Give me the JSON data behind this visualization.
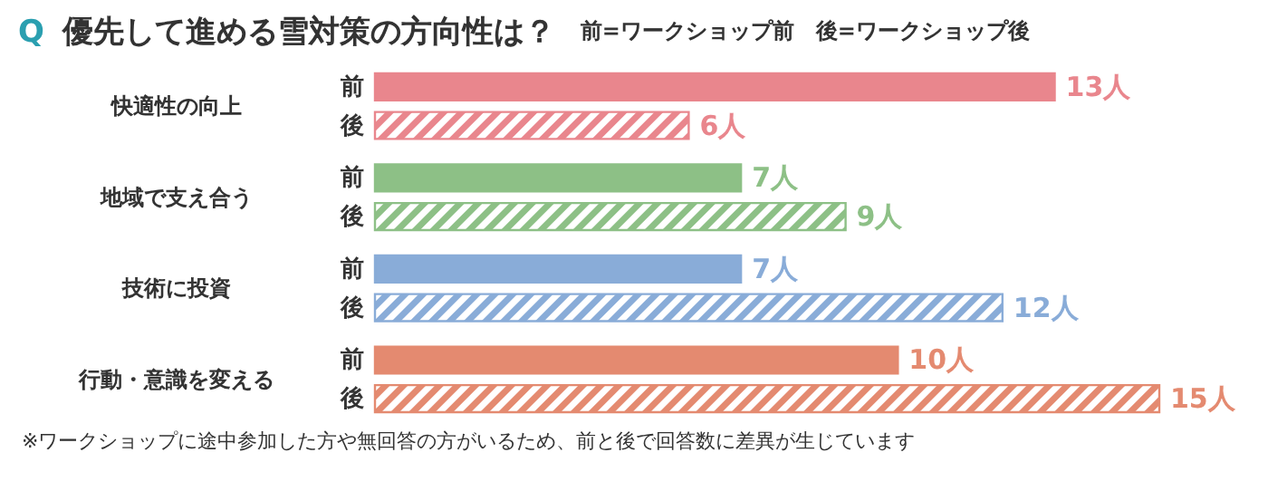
{
  "chart_data": {
    "type": "bar",
    "orientation": "horizontal",
    "title": "Q 優先して進める雪対策の方向性は？",
    "subtitle": "前=ワークショップ前　後=ワークショップ後",
    "categories": [
      "快適性の向上",
      "地域で支え合う",
      "技術に投資",
      "行動・意識を変える"
    ],
    "series": [
      {
        "name": "前",
        "colors": [
          "#e9868d",
          "#8dc086",
          "#89acd8",
          "#e48a70"
        ],
        "values": [
          13,
          7,
          7,
          10
        ],
        "value_labels": [
          "13人",
          "7人",
          "7人",
          "10人"
        ]
      },
      {
        "name": "後",
        "colors": [
          "#e9868d",
          "#8dc086",
          "#89acd8",
          "#e48a70"
        ],
        "values": [
          6,
          9,
          12,
          15
        ],
        "value_labels": [
          "6人",
          "9人",
          "12人",
          "15人"
        ]
      }
    ],
    "annotations": [
      "※ワークショップに途中参加した方や無回答の方がいるため、前と後で回答数に差異が生じています"
    ]
  }
}
